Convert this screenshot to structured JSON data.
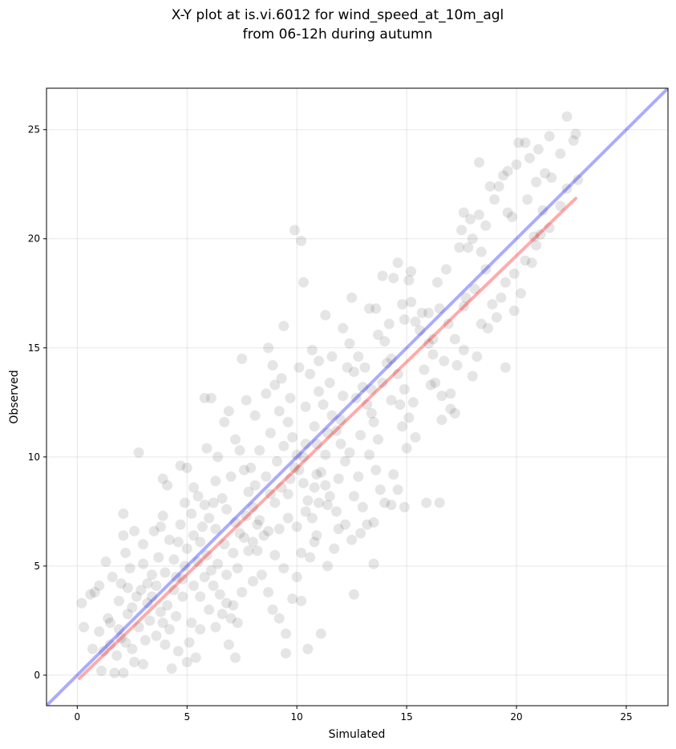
{
  "chart_data": {
    "type": "scatter",
    "title_lines": [
      "X-Y plot at is.vi.6012 for wind_speed_at_10m_agl",
      "from 06-12h during autumn"
    ],
    "xlabel": "Simulated",
    "ylabel": "Observed",
    "xlim": [
      -1.4,
      26.9
    ],
    "ylim": [
      -1.4,
      26.9
    ],
    "xticks": [
      0,
      5,
      10,
      15,
      20,
      25
    ],
    "yticks": [
      0,
      5,
      10,
      15,
      20,
      25
    ],
    "grid": true,
    "legend": "none",
    "point_color": "#000000",
    "point_opacity": 0.1,
    "reference_line": {
      "name": "1:1",
      "color": "#0000ff",
      "opacity": 0.33,
      "x": [
        -1.4,
        26.9
      ],
      "y": [
        -1.4,
        26.9
      ]
    },
    "fit_line": {
      "name": "regression",
      "color": "#ff0000",
      "opacity": 0.33,
      "x": [
        0.1,
        22.7
      ],
      "y": [
        -0.15,
        21.85
      ]
    },
    "points": [
      [
        0.2,
        3.3
      ],
      [
        0.6,
        3.7
      ],
      [
        0.8,
        3.8
      ],
      [
        0.3,
        2.2
      ],
      [
        0.7,
        1.2
      ],
      [
        1.0,
        2.0
      ],
      [
        1.2,
        1.1
      ],
      [
        1.5,
        1.4
      ],
      [
        1.1,
        0.2
      ],
      [
        1.7,
        0.1
      ],
      [
        2.1,
        0.1
      ],
      [
        1.8,
        0.9
      ],
      [
        2.2,
        1.5
      ],
      [
        2.6,
        0.6
      ],
      [
        2.3,
        2.8
      ],
      [
        1.4,
        2.6
      ],
      [
        1.0,
        4.1
      ],
      [
        1.3,
        5.2
      ],
      [
        1.6,
        4.5
      ],
      [
        2.0,
        4.2
      ],
      [
        2.2,
        5.6
      ],
      [
        2.1,
        6.4
      ],
      [
        2.1,
        7.4
      ],
      [
        2.8,
        10.2
      ],
      [
        2.6,
        6.6
      ],
      [
        3.0,
        5.1
      ],
      [
        3.2,
        4.2
      ],
      [
        3.4,
        3.6
      ],
      [
        3.8,
        2.9
      ],
      [
        4.2,
        2.1
      ],
      [
        4.0,
        1.4
      ],
      [
        4.3,
        0.3
      ],
      [
        4.6,
        1.1
      ],
      [
        5.0,
        0.6
      ],
      [
        5.4,
        0.8
      ],
      [
        5.1,
        1.5
      ],
      [
        5.2,
        2.4
      ],
      [
        4.8,
        3.6
      ],
      [
        4.5,
        4.5
      ],
      [
        4.9,
        5.0
      ],
      [
        4.2,
        6.2
      ],
      [
        3.8,
        6.8
      ],
      [
        3.9,
        7.3
      ],
      [
        4.1,
        8.7
      ],
      [
        3.9,
        9.0
      ],
      [
        4.7,
        9.6
      ],
      [
        5.0,
        9.5
      ],
      [
        5.3,
        8.6
      ],
      [
        5.8,
        7.8
      ],
      [
        6.0,
        7.2
      ],
      [
        5.6,
        6.1
      ],
      [
        5.9,
        5.5
      ],
      [
        6.1,
        4.8
      ],
      [
        6.2,
        4.1
      ],
      [
        6.5,
        3.7
      ],
      [
        6.8,
        3.3
      ],
      [
        7.0,
        2.6
      ],
      [
        7.3,
        2.4
      ],
      [
        6.9,
        1.4
      ],
      [
        7.2,
        0.8
      ],
      [
        5.8,
        12.7
      ],
      [
        6.1,
        12.7
      ],
      [
        6.7,
        11.6
      ],
      [
        7.2,
        10.8
      ],
      [
        7.4,
        10.3
      ],
      [
        7.6,
        9.4
      ],
      [
        7.8,
        8.4
      ],
      [
        8.0,
        7.7
      ],
      [
        8.3,
        7.1
      ],
      [
        8.5,
        6.4
      ],
      [
        8.2,
        5.7
      ],
      [
        8.4,
        4.6
      ],
      [
        8.7,
        3.8
      ],
      [
        8.9,
        3.0
      ],
      [
        9.2,
        2.6
      ],
      [
        9.5,
        1.9
      ],
      [
        9.5,
        1.0
      ],
      [
        7.5,
        14.5
      ],
      [
        8.7,
        15.0
      ],
      [
        8.9,
        14.2
      ],
      [
        9.0,
        13.3
      ],
      [
        9.2,
        12.1
      ],
      [
        9.6,
        11.6
      ],
      [
        9.8,
        10.9
      ],
      [
        10.0,
        10.1
      ],
      [
        10.1,
        9.4
      ],
      [
        10.3,
        8.8
      ],
      [
        10.5,
        8.0
      ],
      [
        10.7,
        7.2
      ],
      [
        10.9,
        6.4
      ],
      [
        10.6,
        5.4
      ],
      [
        10.0,
        4.5
      ],
      [
        9.8,
        3.5
      ],
      [
        10.2,
        3.4
      ],
      [
        10.5,
        1.2
      ],
      [
        11.1,
        1.9
      ],
      [
        9.9,
        20.4
      ],
      [
        10.2,
        19.9
      ],
      [
        10.3,
        18.0
      ],
      [
        9.4,
        16.0
      ],
      [
        10.1,
        14.1
      ],
      [
        10.6,
        13.8
      ],
      [
        11.0,
        13.0
      ],
      [
        11.2,
        12.4
      ],
      [
        11.6,
        11.9
      ],
      [
        11.8,
        11.2
      ],
      [
        12.0,
        10.6
      ],
      [
        12.2,
        9.8
      ],
      [
        11.9,
        9.0
      ],
      [
        11.5,
        8.2
      ],
      [
        11.8,
        7.5
      ],
      [
        12.2,
        6.9
      ],
      [
        12.5,
        6.2
      ],
      [
        11.4,
        5.0
      ],
      [
        12.6,
        3.7
      ],
      [
        11.3,
        16.5
      ],
      [
        12.1,
        15.9
      ],
      [
        12.4,
        15.2
      ],
      [
        12.8,
        14.6
      ],
      [
        12.6,
        13.9
      ],
      [
        13.0,
        13.2
      ],
      [
        13.2,
        12.4
      ],
      [
        13.5,
        11.6
      ],
      [
        13.7,
        10.8
      ],
      [
        13.3,
        10.1
      ],
      [
        13.6,
        9.4
      ],
      [
        13.8,
        8.5
      ],
      [
        14.0,
        7.9
      ],
      [
        13.5,
        7.0
      ],
      [
        13.2,
        6.9
      ],
      [
        13.5,
        5.1
      ],
      [
        12.5,
        17.3
      ],
      [
        13.3,
        16.8
      ],
      [
        13.6,
        16.8
      ],
      [
        14.0,
        15.3
      ],
      [
        14.3,
        14.5
      ],
      [
        14.6,
        13.8
      ],
      [
        14.9,
        13.1
      ],
      [
        14.7,
        12.4
      ],
      [
        15.1,
        11.8
      ],
      [
        15.4,
        10.9
      ],
      [
        15.0,
        10.4
      ],
      [
        14.4,
        9.2
      ],
      [
        14.6,
        8.5
      ],
      [
        14.3,
        7.8
      ],
      [
        14.9,
        7.7
      ],
      [
        13.9,
        18.3
      ],
      [
        14.4,
        18.2
      ],
      [
        14.6,
        18.9
      ],
      [
        15.1,
        18.1
      ],
      [
        15.2,
        18.5
      ],
      [
        14.8,
        17.0
      ],
      [
        15.4,
        16.2
      ],
      [
        15.6,
        15.8
      ],
      [
        16.0,
        15.2
      ],
      [
        16.2,
        14.7
      ],
      [
        15.8,
        14.0
      ],
      [
        16.3,
        13.4
      ],
      [
        16.6,
        12.8
      ],
      [
        17.0,
        12.2
      ],
      [
        16.6,
        11.7
      ],
      [
        17.2,
        12.0
      ],
      [
        15.9,
        7.9
      ],
      [
        16.5,
        7.9
      ],
      [
        16.0,
        16.6
      ],
      [
        16.5,
        16.8
      ],
      [
        16.9,
        16.1
      ],
      [
        17.2,
        15.4
      ],
      [
        17.6,
        14.9
      ],
      [
        17.3,
        14.2
      ],
      [
        17.0,
        12.9
      ],
      [
        16.4,
        18.0
      ],
      [
        16.8,
        18.6
      ],
      [
        17.4,
        19.6
      ],
      [
        17.8,
        19.6
      ],
      [
        17.5,
        20.4
      ],
      [
        17.9,
        20.9
      ],
      [
        17.6,
        21.2
      ],
      [
        18.0,
        20.0
      ],
      [
        18.4,
        19.4
      ],
      [
        18.0,
        13.7
      ],
      [
        18.2,
        14.6
      ],
      [
        18.7,
        15.9
      ],
      [
        18.9,
        17.0
      ],
      [
        19.1,
        16.4
      ],
      [
        19.3,
        17.3
      ],
      [
        19.5,
        14.1
      ],
      [
        19.9,
        16.7
      ],
      [
        18.3,
        21.1
      ],
      [
        18.6,
        20.6
      ],
      [
        19.0,
        21.8
      ],
      [
        19.2,
        22.4
      ],
      [
        19.4,
        22.9
      ],
      [
        18.3,
        23.5
      ],
      [
        18.8,
        22.4
      ],
      [
        19.6,
        21.2
      ],
      [
        19.8,
        21.0
      ],
      [
        19.6,
        23.1
      ],
      [
        20.0,
        23.4
      ],
      [
        20.1,
        24.4
      ],
      [
        20.4,
        24.4
      ],
      [
        20.6,
        23.7
      ],
      [
        20.9,
        22.6
      ],
      [
        21.0,
        24.1
      ],
      [
        21.3,
        23.0
      ],
      [
        21.6,
        22.8
      ],
      [
        21.2,
        21.3
      ],
      [
        21.5,
        20.5
      ],
      [
        20.7,
        18.9
      ],
      [
        20.8,
        20.1
      ],
      [
        21.5,
        24.7
      ],
      [
        22.0,
        23.9
      ],
      [
        22.3,
        25.6
      ],
      [
        22.6,
        24.5
      ],
      [
        22.7,
        24.8
      ],
      [
        22.3,
        22.3
      ],
      [
        22.8,
        22.7
      ],
      [
        20.5,
        21.8
      ],
      [
        21.1,
        20.2
      ],
      [
        22.0,
        21.5
      ],
      [
        19.9,
        18.4
      ],
      [
        20.4,
        19.0
      ],
      [
        20.9,
        19.7
      ],
      [
        20.2,
        17.5
      ],
      [
        19.5,
        18.0
      ],
      [
        18.6,
        18.6
      ],
      [
        18.1,
        17.7
      ],
      [
        17.6,
        16.9
      ],
      [
        18.4,
        16.1
      ],
      [
        17.7,
        17.3
      ],
      [
        1.5,
        2.4
      ],
      [
        1.9,
        2.1
      ],
      [
        2.5,
        3.1
      ],
      [
        2.8,
        2.2
      ],
      [
        3.1,
        1.6
      ],
      [
        3.3,
        2.5
      ],
      [
        3.6,
        1.8
      ],
      [
        2.9,
        3.9
      ],
      [
        3.4,
        4.6
      ],
      [
        3.7,
        5.4
      ],
      [
        2.4,
        4.9
      ],
      [
        3.0,
        6.0
      ],
      [
        3.5,
        6.6
      ],
      [
        4.4,
        5.3
      ],
      [
        4.7,
        6.9
      ],
      [
        5.2,
        7.4
      ],
      [
        5.5,
        8.2
      ],
      [
        4.9,
        7.9
      ],
      [
        6.3,
        8.9
      ],
      [
        6.6,
        8.1
      ],
      [
        6.3,
        6.7
      ],
      [
        6.7,
        6.0
      ],
      [
        7.1,
        5.6
      ],
      [
        7.4,
        6.5
      ],
      [
        7.7,
        7.3
      ],
      [
        8.1,
        8.7
      ],
      [
        8.6,
        9.1
      ],
      [
        9.1,
        9.8
      ],
      [
        9.4,
        10.5
      ],
      [
        8.8,
        11.1
      ],
      [
        8.3,
        10.3
      ],
      [
        7.9,
        9.5
      ],
      [
        7.0,
        9.1
      ],
      [
        6.4,
        10.0
      ],
      [
        5.9,
        10.4
      ],
      [
        6.9,
        12.1
      ],
      [
        7.7,
        12.6
      ],
      [
        8.1,
        11.9
      ],
      [
        8.6,
        12.9
      ],
      [
        9.3,
        13.6
      ],
      [
        9.7,
        12.7
      ],
      [
        10.4,
        12.3
      ],
      [
        10.8,
        11.4
      ],
      [
        10.4,
        10.6
      ],
      [
        11.3,
        10.1
      ],
      [
        11.1,
        9.3
      ],
      [
        10.8,
        8.6
      ],
      [
        11.4,
        7.8
      ],
      [
        9.6,
        7.2
      ],
      [
        9.2,
        6.7
      ],
      [
        9.0,
        7.9
      ],
      [
        8.8,
        8.3
      ],
      [
        9.3,
        8.6
      ],
      [
        9.7,
        9.0
      ],
      [
        8.2,
        6.9
      ],
      [
        7.6,
        6.3
      ],
      [
        7.2,
        7.0
      ],
      [
        6.8,
        7.6
      ],
      [
        6.2,
        7.9
      ],
      [
        5.7,
        6.8
      ],
      [
        5.3,
        6.4
      ],
      [
        5.0,
        5.8
      ],
      [
        4.6,
        6.1
      ],
      [
        5.5,
        5.2
      ],
      [
        5.8,
        4.5
      ],
      [
        6.4,
        5.1
      ],
      [
        6.8,
        4.6
      ],
      [
        7.3,
        4.9
      ],
      [
        7.8,
        5.7
      ],
      [
        8.0,
        6.1
      ],
      [
        8.7,
        6.6
      ],
      [
        9.0,
        5.5
      ],
      [
        9.4,
        4.9
      ],
      [
        8.0,
        4.3
      ],
      [
        7.5,
        3.8
      ],
      [
        7.1,
        3.2
      ],
      [
        6.6,
        2.8
      ],
      [
        6.0,
        3.0
      ],
      [
        5.6,
        3.6
      ],
      [
        5.3,
        4.1
      ],
      [
        4.8,
        4.4
      ],
      [
        4.4,
        3.9
      ],
      [
        4.0,
        4.7
      ],
      [
        3.6,
        4.1
      ],
      [
        3.2,
        3.3
      ],
      [
        2.7,
        3.6
      ],
      [
        2.3,
        4.0
      ],
      [
        1.9,
        3.4
      ],
      [
        4.1,
        3.2
      ],
      [
        4.5,
        2.7
      ],
      [
        5.6,
        2.1
      ],
      [
        6.3,
        2.2
      ],
      [
        3.9,
        2.4
      ],
      [
        2.5,
        1.2
      ],
      [
        3.0,
        0.5
      ],
      [
        2.0,
        1.7
      ],
      [
        12.8,
        9.1
      ],
      [
        12.4,
        10.2
      ],
      [
        12.9,
        11.0
      ],
      [
        13.4,
        12.0
      ],
      [
        12.1,
        12.8
      ],
      [
        11.5,
        13.4
      ],
      [
        11.0,
        14.4
      ],
      [
        10.7,
        14.9
      ],
      [
        11.6,
        14.6
      ],
      [
        12.3,
        14.1
      ],
      [
        13.1,
        14.1
      ],
      [
        13.9,
        13.4
      ],
      [
        14.3,
        12.6
      ],
      [
        14.8,
        11.4
      ],
      [
        15.3,
        12.5
      ],
      [
        16.1,
        13.3
      ],
      [
        16.7,
        14.4
      ],
      [
        16.2,
        15.4
      ],
      [
        15.7,
        16.6
      ],
      [
        15.2,
        17.1
      ],
      [
        14.9,
        16.3
      ],
      [
        14.2,
        16.1
      ],
      [
        13.7,
        15.6
      ],
      [
        14.1,
        14.3
      ],
      [
        13.4,
        13.1
      ],
      [
        12.7,
        12.7
      ],
      [
        12.0,
        11.7
      ],
      [
        11.4,
        11.1
      ],
      [
        10.9,
        10.6
      ],
      [
        10.3,
        10.0
      ],
      [
        9.9,
        9.5
      ],
      [
        10.9,
        9.2
      ],
      [
        11.3,
        8.7
      ],
      [
        12.6,
        8.2
      ],
      [
        13.0,
        7.7
      ],
      [
        12.9,
        6.5
      ],
      [
        11.9,
        6.7
      ],
      [
        11.7,
        5.8
      ],
      [
        10.8,
        6.1
      ],
      [
        10.2,
        5.6
      ],
      [
        10.0,
        6.8
      ],
      [
        10.4,
        7.5
      ],
      [
        11.0,
        7.9
      ],
      [
        9.6,
        8.3
      ]
    ]
  }
}
